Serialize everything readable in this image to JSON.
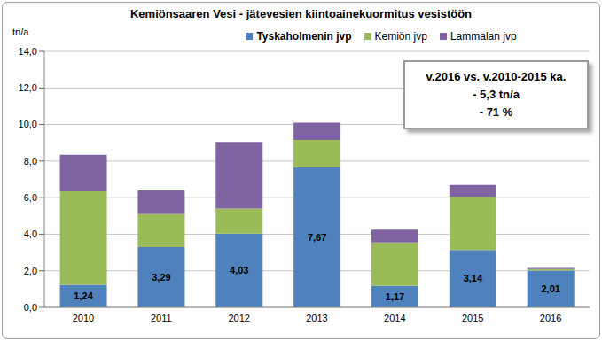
{
  "chart_data": {
    "type": "bar",
    "title": "Kemiönsaaren Vesi - jätevesien kiintoainekuormitus vesistöön",
    "y_label": "tn/a",
    "categories": [
      "2010",
      "2011",
      "2012",
      "2013",
      "2014",
      "2015",
      "2016"
    ],
    "series": [
      {
        "name": "Tyskaholmenin jvp",
        "color": "#4f81bd",
        "values": [
          1.24,
          3.29,
          4.03,
          7.67,
          1.17,
          3.14,
          2.01
        ],
        "value_labels": [
          "1,24",
          "3,29",
          "4,03",
          "7,67",
          "1,17",
          "3,14",
          "2,01"
        ],
        "data_labels": true
      },
      {
        "name": "Kemiön jvp",
        "color": "#9bbb59",
        "values": [
          5.11,
          1.81,
          1.37,
          1.48,
          2.38,
          2.91,
          0.08
        ]
      },
      {
        "name": "Lammalan jvp",
        "color": "#8064a2",
        "values": [
          2.0,
          1.3,
          3.65,
          0.95,
          0.7,
          0.65,
          0.06
        ]
      }
    ],
    "stacked": true,
    "grid": true,
    "legend": "top",
    "ylim": [
      0,
      14
    ],
    "yticks": [
      {
        "value": 0,
        "label": "0,0"
      },
      {
        "value": 2,
        "label": "2,0"
      },
      {
        "value": 4,
        "label": "4,0"
      },
      {
        "value": 6,
        "label": "6,0"
      },
      {
        "value": 8,
        "label": "8,0"
      },
      {
        "value": 10,
        "label": "10,0"
      },
      {
        "value": 12,
        "label": "12,0"
      },
      {
        "value": 14,
        "label": "14,0"
      }
    ],
    "annotation": [
      "v.2016 vs. v.2010-2015 ka.",
      "- 5,3 tn/a",
      "- 71 %"
    ]
  }
}
